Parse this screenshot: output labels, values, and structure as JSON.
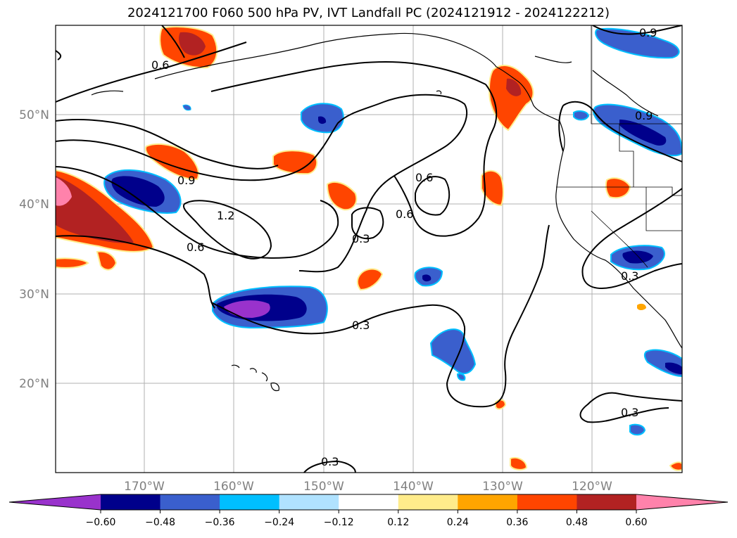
{
  "title": "2024121700 F060 500 hPa PV, IVT Landfall PC (2024121912 - 2024122212)",
  "lat_labels": [
    "50°N",
    "40°N",
    "30°N",
    "20°N"
  ],
  "lon_labels": [
    "170°W",
    "160°W",
    "150°W",
    "140°W",
    "130°W",
    "120°W"
  ],
  "contour_labels": [
    "0.9",
    "0.6",
    "0.9",
    "1.2",
    "0.6",
    "0.9",
    "0.6",
    "0.3",
    "0.3",
    "0.6",
    "0.3",
    "0.3",
    "0.3"
  ],
  "colorbar": {
    "ticks": [
      "−0.60",
      "−0.48",
      "−0.36",
      "−0.24",
      "−0.12",
      "0.12",
      "0.24",
      "0.36",
      "0.48",
      "0.60"
    ],
    "colors": [
      "#9932cc",
      "#00008b",
      "#3a5fcd",
      "#00bfff",
      "#b0e2ff",
      "#ffffff",
      "#ffec8b",
      "#ffa500",
      "#ff4500",
      "#b22222",
      "#ff82ab"
    ]
  },
  "colors": {
    "neg_strong": "#00008b",
    "neg_mid": "#3a5fcd",
    "neg_weak": "#00bfff",
    "pos_weak": "#ffa500",
    "pos_mid": "#ff4500",
    "pos_strong": "#b22222",
    "pos_max": "#ff82ab"
  }
}
